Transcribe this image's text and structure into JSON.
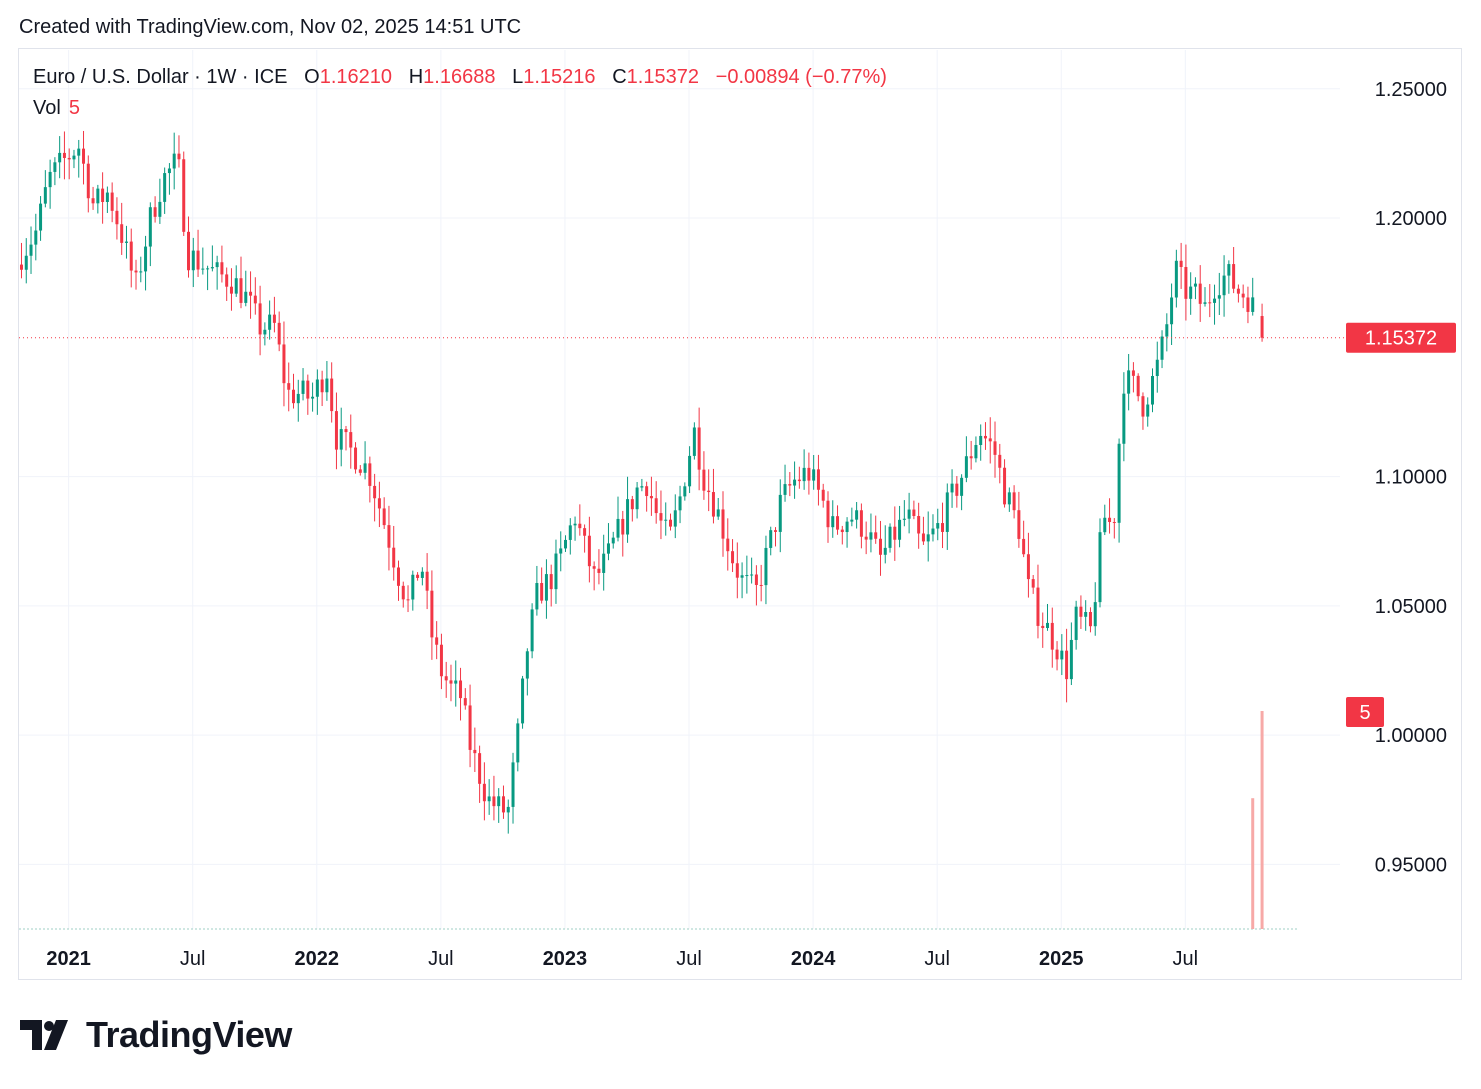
{
  "header": {
    "created": "Created with TradingView.com, Nov 02, 2025 14:51 UTC"
  },
  "legend": {
    "symbol": "Euro / U.S. Dollar · 1W · ICE",
    "o_label": "O",
    "o_value": "1.16210",
    "h_label": "H",
    "h_value": "1.16688",
    "l_label": "L",
    "l_value": "1.15216",
    "c_label": "C",
    "c_value": "1.15372",
    "change": "−0.00894 (−0.77%)",
    "vol_label": "Vol",
    "vol_value": "5"
  },
  "colors": {
    "up": "#089981",
    "down": "#f23645",
    "grid": "#f0f3fa",
    "text": "#131722",
    "vol": "#f7a9a7"
  },
  "brand": {
    "name": "TradingView"
  },
  "chart_data": {
    "type": "candlestick",
    "title": "Euro / U.S. Dollar · 1W · ICE",
    "interval": "1W",
    "y_range": [
      0.925,
      1.265
    ],
    "y_ticks": [
      "1.25000",
      "1.20000",
      "1.10000",
      "1.05000",
      "1.00000",
      "0.95000"
    ],
    "y_tick_values": [
      1.25,
      1.2,
      1.1,
      1.05,
      1.0,
      0.95
    ],
    "x_range_years": [
      2020.8,
      2025.95
    ],
    "x_ticks": [
      {
        "label": "2021",
        "year": 2021.0,
        "bold": true
      },
      {
        "label": "Jul",
        "year": 2021.5,
        "bold": false
      },
      {
        "label": "2022",
        "year": 2022.0,
        "bold": true
      },
      {
        "label": "Jul",
        "year": 2022.5,
        "bold": false
      },
      {
        "label": "2023",
        "year": 2023.0,
        "bold": true
      },
      {
        "label": "Jul",
        "year": 2023.5,
        "bold": false
      },
      {
        "label": "2024",
        "year": 2024.0,
        "bold": true
      },
      {
        "label": "Jul",
        "year": 2024.5,
        "bold": false
      },
      {
        "label": "2025",
        "year": 2025.0,
        "bold": true
      },
      {
        "label": "Jul",
        "year": 2025.5,
        "bold": false
      }
    ],
    "last_price": 1.15372,
    "last_price_label": "1.15372",
    "close_anchors": [
      [
        2020.81,
        1.186
      ],
      [
        2020.87,
        1.195
      ],
      [
        2020.92,
        1.215
      ],
      [
        2020.98,
        1.222
      ],
      [
        2021.04,
        1.228
      ],
      [
        2021.1,
        1.205
      ],
      [
        2021.16,
        1.21
      ],
      [
        2021.21,
        1.195
      ],
      [
        2021.27,
        1.173
      ],
      [
        2021.33,
        1.2
      ],
      [
        2021.38,
        1.215
      ],
      [
        2021.44,
        1.222
      ],
      [
        2021.48,
        1.186
      ],
      [
        2021.54,
        1.182
      ],
      [
        2021.6,
        1.178
      ],
      [
        2021.66,
        1.176
      ],
      [
        2021.71,
        1.17
      ],
      [
        2021.77,
        1.158
      ],
      [
        2021.83,
        1.158
      ],
      [
        2021.88,
        1.132
      ],
      [
        2021.94,
        1.132
      ],
      [
        2021.98,
        1.13
      ],
      [
        2022.04,
        1.142
      ],
      [
        2022.08,
        1.115
      ],
      [
        2022.16,
        1.108
      ],
      [
        2022.21,
        1.102
      ],
      [
        2022.27,
        1.083
      ],
      [
        2022.33,
        1.062
      ],
      [
        2022.37,
        1.05
      ],
      [
        2022.42,
        1.068
      ],
      [
        2022.46,
        1.04
      ],
      [
        2022.5,
        1.025
      ],
      [
        2022.54,
        1.018
      ],
      [
        2022.58,
        1.015
      ],
      [
        2022.62,
        0.995
      ],
      [
        2022.69,
        0.975
      ],
      [
        2022.73,
        0.972
      ],
      [
        2022.77,
        0.97
      ],
      [
        2022.81,
        1.0
      ],
      [
        2022.85,
        1.035
      ],
      [
        2022.89,
        1.055
      ],
      [
        2022.94,
        1.06
      ],
      [
        2022.98,
        1.068
      ],
      [
        2023.04,
        1.085
      ],
      [
        2023.08,
        1.072
      ],
      [
        2023.12,
        1.06
      ],
      [
        2023.17,
        1.068
      ],
      [
        2023.23,
        1.082
      ],
      [
        2023.29,
        1.095
      ],
      [
        2023.33,
        1.098
      ],
      [
        2023.37,
        1.085
      ],
      [
        2023.42,
        1.075
      ],
      [
        2023.46,
        1.09
      ],
      [
        2023.52,
        1.118
      ],
      [
        2023.56,
        1.1
      ],
      [
        2023.62,
        1.085
      ],
      [
        2023.67,
        1.07
      ],
      [
        2023.71,
        1.06
      ],
      [
        2023.77,
        1.055
      ],
      [
        2023.82,
        1.072
      ],
      [
        2023.87,
        1.09
      ],
      [
        2023.92,
        1.098
      ],
      [
        2023.98,
        1.102
      ],
      [
        2024.04,
        1.09
      ],
      [
        2024.08,
        1.08
      ],
      [
        2024.15,
        1.085
      ],
      [
        2024.21,
        1.08
      ],
      [
        2024.27,
        1.068
      ],
      [
        2024.33,
        1.078
      ],
      [
        2024.38,
        1.085
      ],
      [
        2024.44,
        1.072
      ],
      [
        2024.5,
        1.08
      ],
      [
        2024.56,
        1.092
      ],
      [
        2024.62,
        1.105
      ],
      [
        2024.67,
        1.118
      ],
      [
        2024.73,
        1.11
      ],
      [
        2024.77,
        1.095
      ],
      [
        2024.83,
        1.08
      ],
      [
        2024.87,
        1.055
      ],
      [
        2024.92,
        1.045
      ],
      [
        2024.98,
        1.035
      ],
      [
        2025.02,
        1.025
      ],
      [
        2025.06,
        1.045
      ],
      [
        2025.12,
        1.04
      ],
      [
        2025.17,
        1.085
      ],
      [
        2025.21,
        1.08
      ],
      [
        2025.25,
        1.138
      ],
      [
        2025.29,
        1.135
      ],
      [
        2025.33,
        1.128
      ],
      [
        2025.38,
        1.14
      ],
      [
        2025.42,
        1.155
      ],
      [
        2025.46,
        1.18
      ],
      [
        2025.5,
        1.172
      ],
      [
        2025.54,
        1.17
      ],
      [
        2025.58,
        1.165
      ],
      [
        2025.62,
        1.175
      ],
      [
        2025.67,
        1.178
      ],
      [
        2025.71,
        1.172
      ],
      [
        2025.75,
        1.17
      ],
      [
        2025.79,
        1.162
      ],
      [
        2025.81,
        1.1621
      ]
    ],
    "last_candle": {
      "open": 1.1621,
      "high": 1.16688,
      "low": 1.15216,
      "close": 1.15372
    },
    "volume": {
      "label": "Vol",
      "value": 5,
      "bars": [
        3,
        5
      ]
    }
  }
}
